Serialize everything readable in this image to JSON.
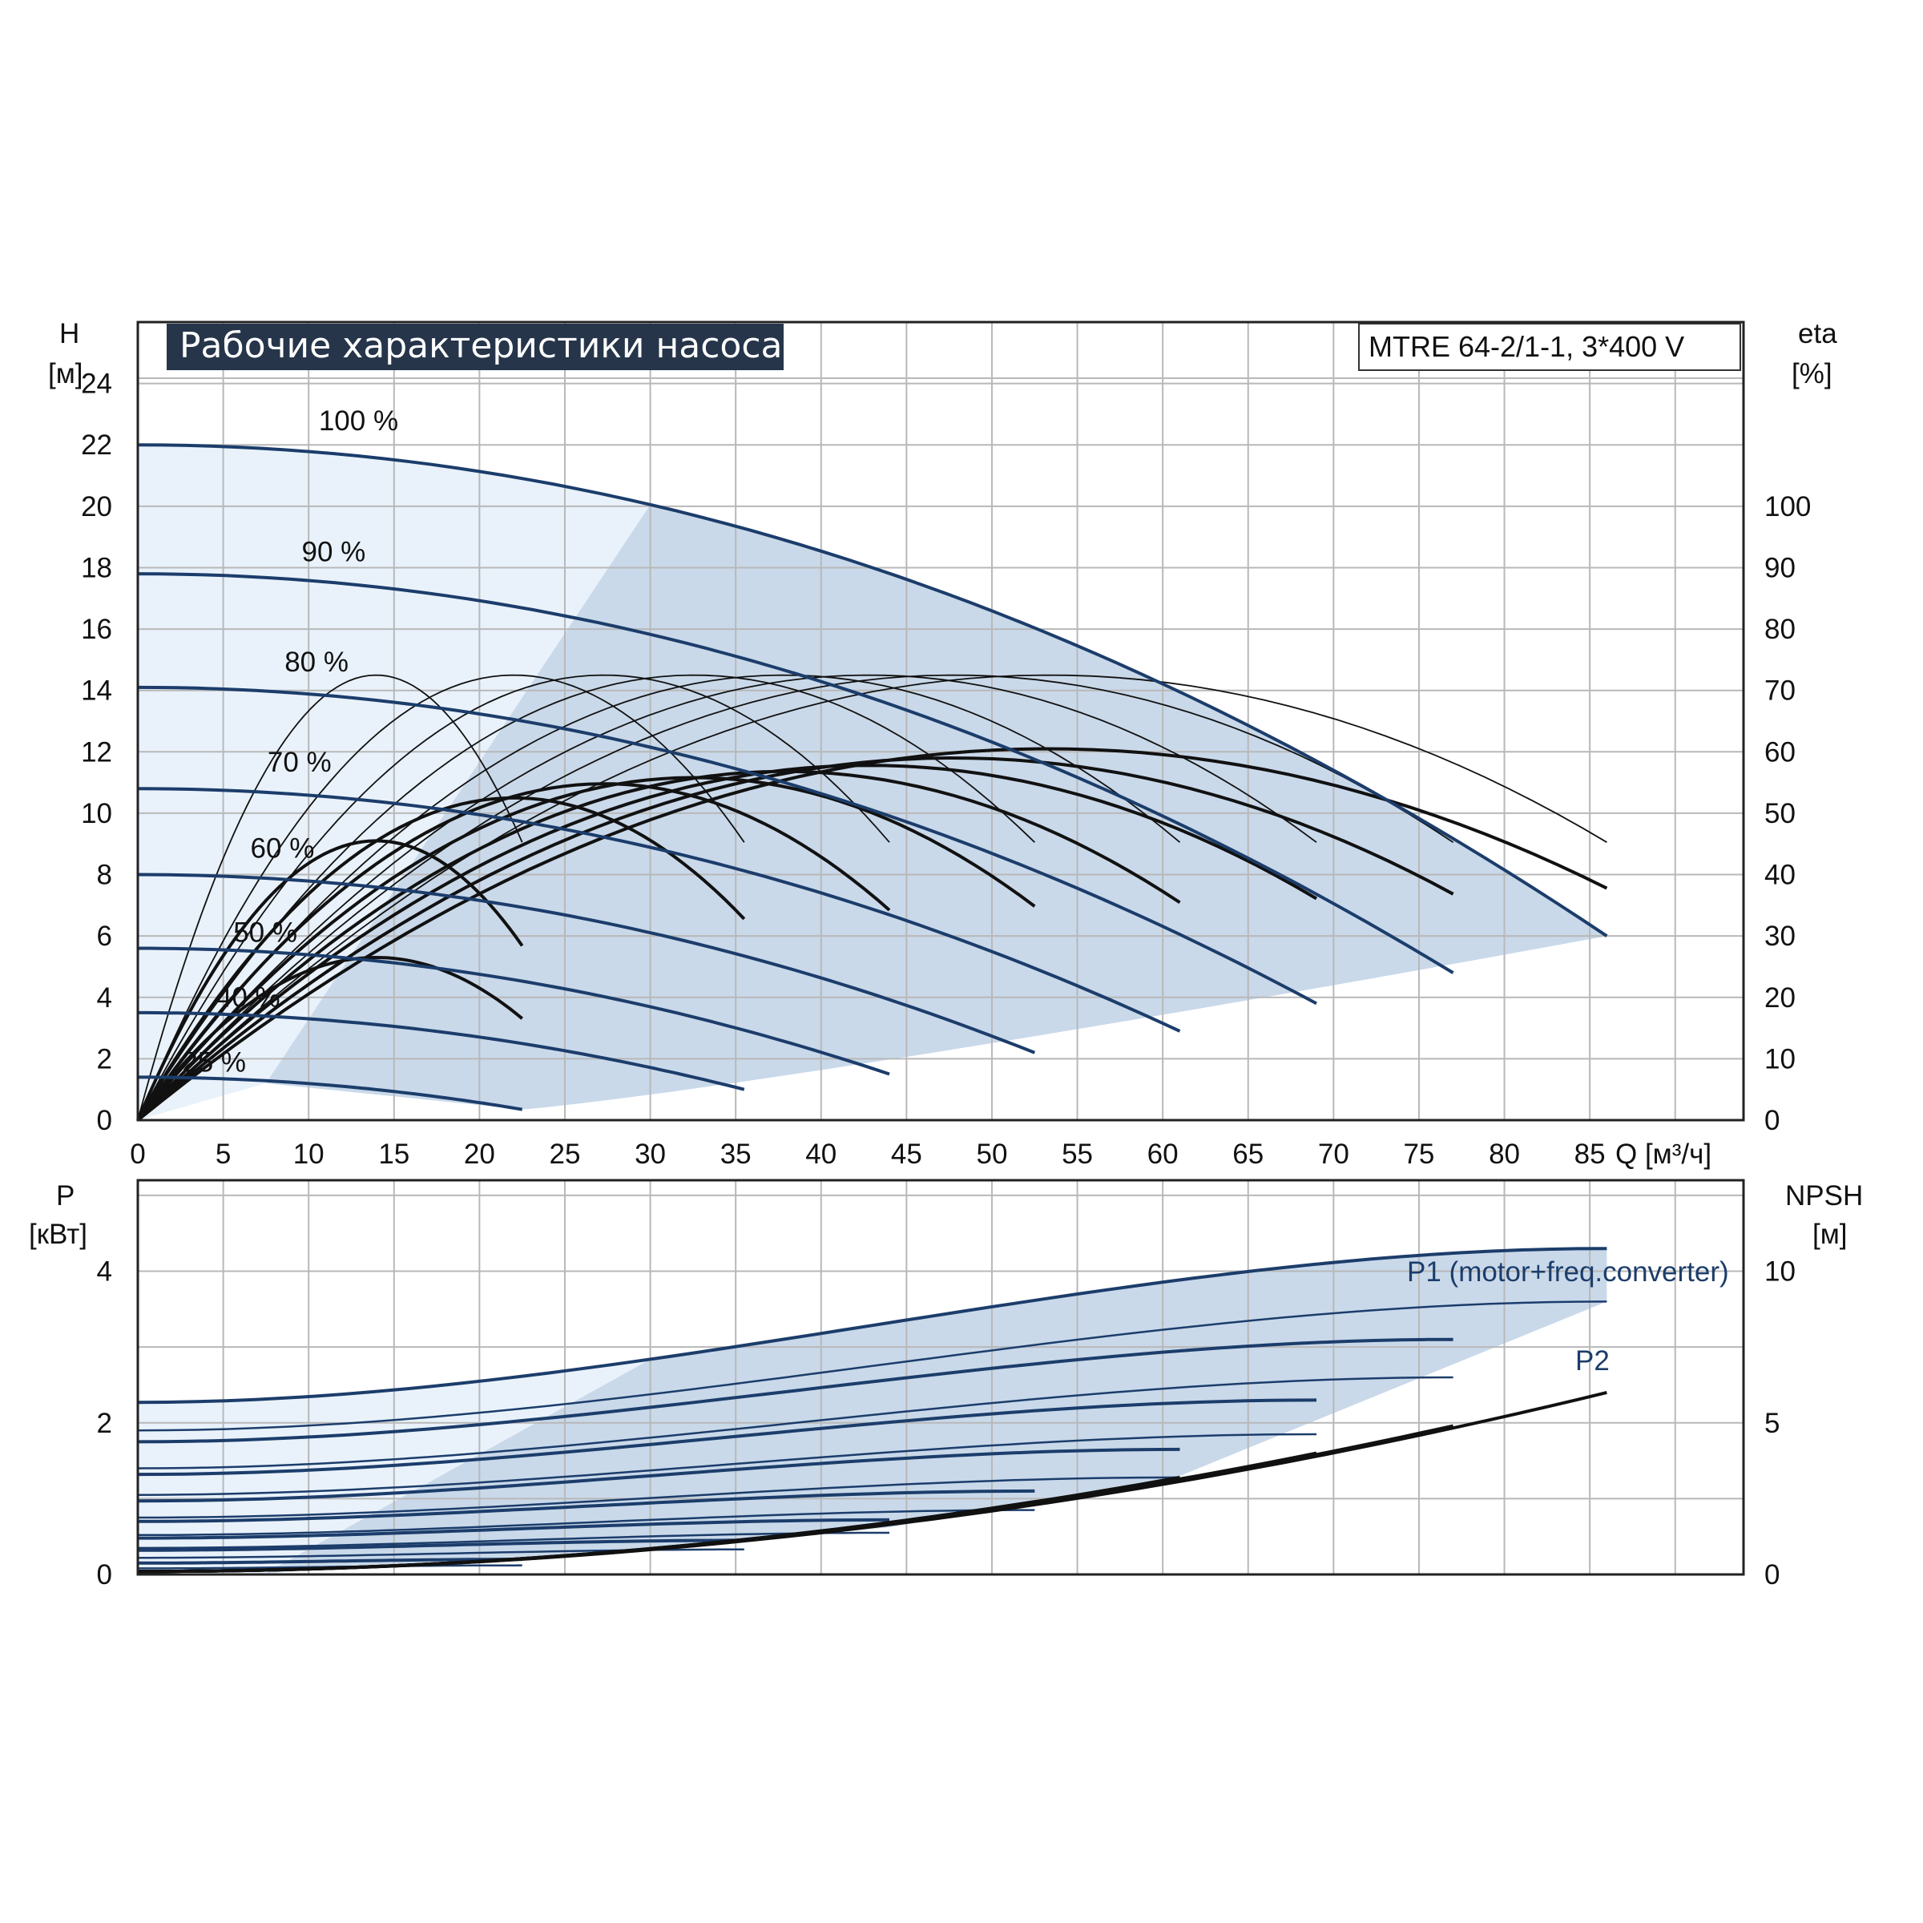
{
  "colors": {
    "head_curve": "#1c3d6b",
    "efficiency_curve": "#111111",
    "operating_area": "#c9d9ea",
    "light_area": "#e9f2fb",
    "grid": "#b8b8b8",
    "title_bg": "#26354a",
    "title_text": "#ffffff"
  },
  "chart_data": [
    {
      "type": "line",
      "title": "Рабочие характеристики насоса",
      "model": "MTRE 64-2/1-1, 3*400 V",
      "xlabel": "Q [м³/ч]",
      "ylabel": [
        "H",
        "[м]"
      ],
      "ylabel_right": [
        "eta",
        "[%]"
      ],
      "xlim": [
        0,
        94
      ],
      "ylim": [
        0,
        26
      ],
      "ylim_right": [
        0,
        130
      ],
      "grid": true,
      "x_ticks": [
        0,
        5,
        10,
        15,
        20,
        25,
        30,
        35,
        40,
        45,
        50,
        55,
        60,
        65,
        70,
        75,
        80,
        85
      ],
      "y_ticks": [
        0,
        2,
        4,
        6,
        8,
        10,
        12,
        14,
        16,
        18,
        20,
        22,
        24
      ],
      "y_ticks_right": [
        0,
        10,
        20,
        30,
        40,
        50,
        60,
        70,
        80,
        90,
        100
      ],
      "head_curves": [
        {
          "name": "100 %",
          "shutoff": 22.0,
          "qmax": 86,
          "hend": 6.0
        },
        {
          "name": "90 %",
          "shutoff": 17.8,
          "qmax": 77,
          "hend": 4.8
        },
        {
          "name": "80 %",
          "shutoff": 14.1,
          "qmax": 69,
          "hend": 3.8
        },
        {
          "name": "70 %",
          "shutoff": 10.8,
          "qmax": 61,
          "hend": 2.9
        },
        {
          "name": "60 %",
          "shutoff": 8.0,
          "qmax": 52.5,
          "hend": 2.2
        },
        {
          "name": "50 %",
          "shutoff": 5.6,
          "qmax": 44,
          "hend": 1.5
        },
        {
          "name": "40 %",
          "shutoff": 3.5,
          "qmax": 35.5,
          "hend": 1.0
        },
        {
          "name": "25 %",
          "shutoff": 1.4,
          "qmax": 22.5,
          "hend": 0.35
        }
      ],
      "efficiency_curves": [
        {
          "qmax": 86,
          "peak": 60.5
        },
        {
          "qmax": 77,
          "peak": 59.0
        },
        {
          "qmax": 69,
          "peak": 57.8
        },
        {
          "qmax": 61,
          "peak": 56.8
        },
        {
          "qmax": 52.5,
          "peak": 55.8
        },
        {
          "qmax": 44,
          "peak": 54.8
        },
        {
          "qmax": 35.5,
          "peak": 52.5
        },
        {
          "qmax": 22.5,
          "peak": 45.5
        },
        {
          "qmax": 22.5,
          "peak": 26.5
        },
        {
          "qmax": 86,
          "peak": 72.5
        },
        {
          "qmax": 77,
          "peak": 72.5
        },
        {
          "qmax": 69,
          "peak": 72.5
        },
        {
          "qmax": 61,
          "peak": 72.5
        },
        {
          "qmax": 52.5,
          "peak": 72.5
        },
        {
          "qmax": 44,
          "peak": 72.5
        },
        {
          "qmax": 35.5,
          "peak": 72.5
        },
        {
          "qmax": 22.5,
          "peak": 72.5
        }
      ]
    },
    {
      "type": "line",
      "ylabel": [
        "P",
        "[кВт]"
      ],
      "ylabel_right": [
        "NPSH",
        "[м]"
      ],
      "xlim": [
        0,
        94
      ],
      "ylim": [
        0,
        5.2
      ],
      "ylim_right": [
        0,
        13
      ],
      "grid": true,
      "y_ticks": [
        0,
        2,
        4
      ],
      "y_ticks_right": [
        0,
        5,
        10
      ],
      "series_labels": [
        "P1 (motor+freq.converter)",
        "P2"
      ],
      "power_curves": [
        {
          "speed": "100 %",
          "p1": [
            2.27,
            4.3
          ],
          "p2": [
            1.9,
            3.6
          ],
          "qmax": 86
        },
        {
          "speed": "90 %",
          "p1": [
            1.75,
            3.1
          ],
          "p2": [
            1.4,
            2.6
          ],
          "qmax": 77
        },
        {
          "speed": "80 %",
          "p1": [
            1.32,
            2.3
          ],
          "p2": [
            1.05,
            1.85
          ],
          "qmax": 69
        },
        {
          "speed": "70 %",
          "p1": [
            0.97,
            1.65
          ],
          "p2": [
            0.75,
            1.28
          ],
          "qmax": 61
        },
        {
          "speed": "60 %",
          "p1": [
            0.7,
            1.1
          ],
          "p2": [
            0.52,
            0.85
          ],
          "qmax": 52.5
        },
        {
          "speed": "50 %",
          "p1": [
            0.48,
            0.72
          ],
          "p2": [
            0.35,
            0.55
          ],
          "qmax": 44
        },
        {
          "speed": "40 %",
          "p1": [
            0.32,
            0.45
          ],
          "p2": [
            0.22,
            0.33
          ],
          "qmax": 35.5
        },
        {
          "speed": "25 %",
          "p1": [
            0.15,
            0.2
          ],
          "p2": [
            0.08,
            0.12
          ],
          "qmax": 22.5
        }
      ],
      "npsh_curves": [
        {
          "qmax": 86,
          "end": 6.0
        },
        {
          "qmax": 77,
          "end": 4.9
        },
        {
          "qmax": 69,
          "end": 4.0
        },
        {
          "qmax": 61,
          "end": 3.2
        },
        {
          "qmax": 52.5,
          "end": 2.4
        },
        {
          "qmax": 44,
          "end": 1.7
        }
      ]
    }
  ]
}
